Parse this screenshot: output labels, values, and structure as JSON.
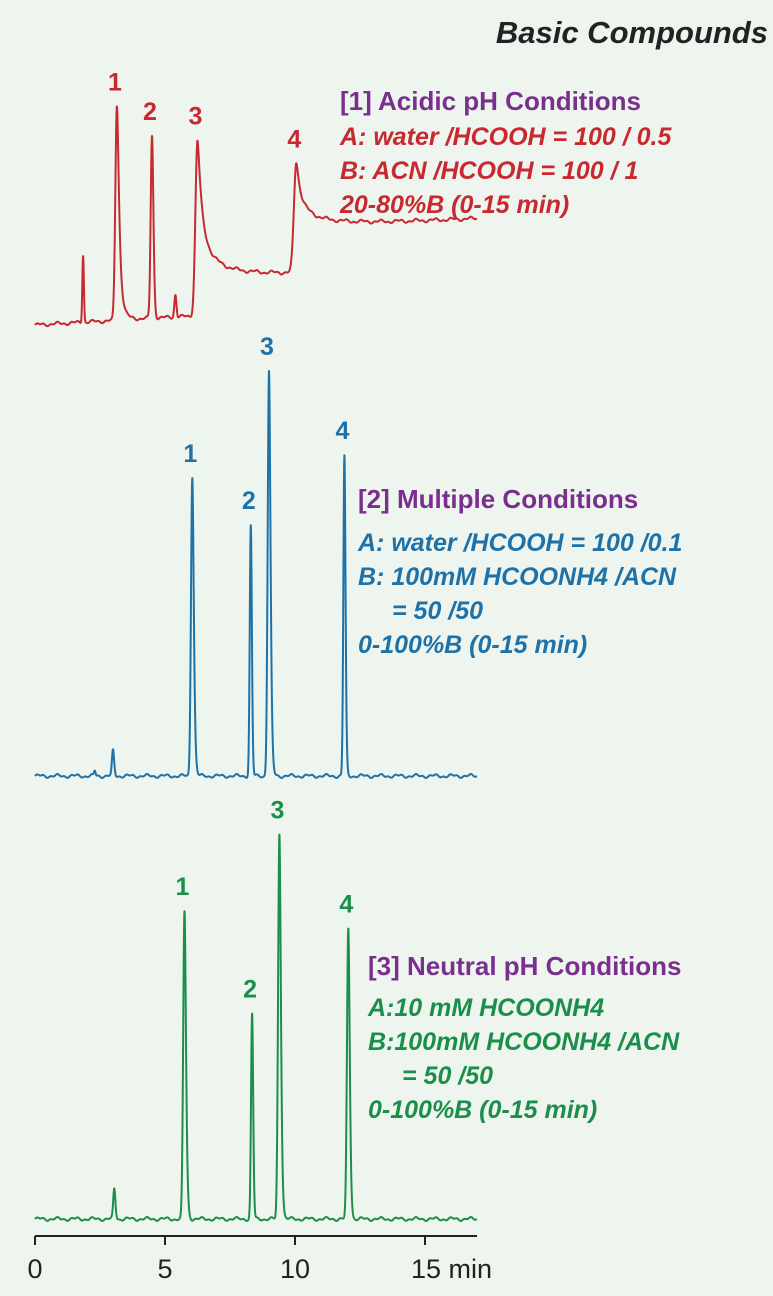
{
  "title": "Basic Compounds",
  "colors": {
    "panel1": "#c8282f",
    "panel2": "#1f72a8",
    "panel3": "#1b8f4a",
    "heading": "#7a2e8e",
    "axis": "#222222"
  },
  "chart_data": {
    "type": "line",
    "title": "Basic Compounds",
    "x_axis": {
      "unit_label": "min",
      "range": [
        0,
        17
      ],
      "ticks": [
        0,
        5,
        10,
        15
      ],
      "tick_labels": [
        "0",
        "5",
        "10",
        "15 min"
      ]
    },
    "grid": false,
    "panels": [
      {
        "heading": "[1] Acidic pH Conditions",
        "lines": [
          "A: water /HCOOH = 100 / 0.5",
          "B: ACN /HCOOH = 100 / 1",
          "20-80%B (0-15 min)"
        ],
        "color": "#c8282f",
        "baseline_drift": 1.0,
        "peaks": [
          {
            "label": "",
            "t": 1.85,
            "h": 2.7,
            "w": 0.03,
            "tail": 0
          },
          {
            "label": "1",
            "t": 3.15,
            "h": 8.6,
            "w": 0.06,
            "tail": 0.22
          },
          {
            "label": "2",
            "t": 4.5,
            "h": 7.3,
            "w": 0.05,
            "tail": 0.06
          },
          {
            "label": "",
            "t": 5.4,
            "h": 0.9,
            "w": 0.04,
            "tail": 0
          },
          {
            "label": "3",
            "t": 6.25,
            "h": 7.0,
            "w": 0.08,
            "tail": 0.55
          },
          {
            "label": "4",
            "t": 10.05,
            "h": 4.4,
            "w": 0.09,
            "tail": 0.75
          }
        ]
      },
      {
        "heading": "[2] Multiple Conditions",
        "lines": [
          "A: water /HCOOH = 100 /0.1",
          "B: 100mM HCOONH4 /ACN",
          "= 50 /50",
          "0-100%B (0-15 min)"
        ],
        "color": "#1f72a8",
        "baseline_drift": 0.0,
        "peaks": [
          {
            "label": "",
            "t": 2.3,
            "h": 0.2,
            "w": 0.03,
            "tail": 0
          },
          {
            "label": "",
            "t": 3.0,
            "h": 1.0,
            "w": 0.04,
            "tail": 0.05
          },
          {
            "label": "1",
            "t": 6.05,
            "h": 12.0,
            "w": 0.05,
            "tail": 0.1
          },
          {
            "label": "2",
            "t": 8.3,
            "h": 10.0,
            "w": 0.04,
            "tail": 0.03
          },
          {
            "label": "3",
            "t": 9.0,
            "h": 16.2,
            "w": 0.05,
            "tail": 0.1
          },
          {
            "label": "4",
            "t": 11.9,
            "h": 12.8,
            "w": 0.04,
            "tail": 0.06
          }
        ]
      },
      {
        "heading": "[3] Neutral pH Conditions",
        "lines": [
          "A:10 mM HCOONH4",
          "B:100mM HCOONH4 /ACN",
          "= 50 /50",
          "0-100%B (0-15 min)"
        ],
        "color": "#1b8f4a",
        "baseline_drift": 0.0,
        "peaks": [
          {
            "label": "",
            "t": 3.05,
            "h": 1.2,
            "w": 0.04,
            "tail": 0.05
          },
          {
            "label": "1",
            "t": 5.75,
            "h": 12.3,
            "w": 0.05,
            "tail": 0.1
          },
          {
            "label": "2",
            "t": 8.35,
            "h": 8.2,
            "w": 0.04,
            "tail": 0.03
          },
          {
            "label": "3",
            "t": 9.4,
            "h": 15.4,
            "w": 0.05,
            "tail": 0.1
          },
          {
            "label": "4",
            "t": 12.05,
            "h": 11.6,
            "w": 0.05,
            "tail": 0.08
          }
        ]
      }
    ]
  }
}
